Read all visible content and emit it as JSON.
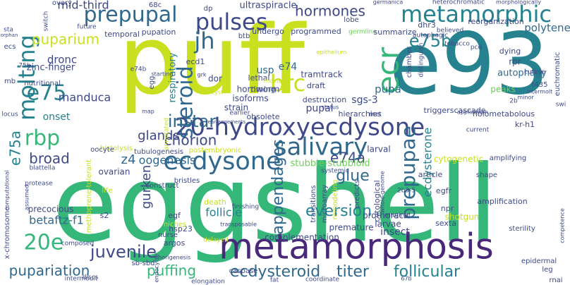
{
  "palette": {
    "purple": "#482878",
    "indigo": "#3e4989",
    "blue": "#31688e",
    "teal": "#26828e",
    "green": "#35b779",
    "lime": "#6ece58",
    "yellow": "#c8e020",
    "gold": "#d8e219"
  },
  "words": [
    {
      "text": "eggshell",
      "color": "#35b779"
    },
    {
      "text": "puff",
      "color": "#c8e020"
    },
    {
      "text": "e93",
      "color": "#26828e"
    },
    {
      "text": "metamorphosis",
      "color": "#482878"
    },
    {
      "text": "20-hydroxyecdysone",
      "color": "#3e4989"
    },
    {
      "text": "ecdysone",
      "color": "#31688e"
    },
    {
      "text": "metamorphic",
      "color": "#26828e"
    },
    {
      "text": "prepupal",
      "color": "#31688e"
    },
    {
      "text": "salivary",
      "color": "#31688e"
    },
    {
      "text": "steroid",
      "color": "#31688e"
    },
    {
      "text": "molting",
      "color": "#26828e"
    },
    {
      "text": "pulses",
      "color": "#3e4989"
    },
    {
      "text": "ecr",
      "color": "#35b779"
    },
    {
      "text": "brc",
      "color": "#c8e020"
    },
    {
      "text": "jh",
      "color": "#31688e"
    },
    {
      "text": "e75",
      "color": "#26828e"
    },
    {
      "text": "e75b",
      "color": "#26828e"
    },
    {
      "text": "prepupae",
      "color": "#31688e"
    },
    {
      "text": "juvenile",
      "color": "#3e4989"
    },
    {
      "text": "rbp",
      "color": "#35b779"
    },
    {
      "text": "20e",
      "color": "#35b779"
    },
    {
      "text": "instar",
      "color": "#31688e"
    },
    {
      "text": "chorion",
      "color": "#3e4989"
    },
    {
      "text": "appendages",
      "color": "#31688e"
    },
    {
      "text": "glue",
      "color": "#31688e"
    },
    {
      "text": "eversion",
      "color": "#26828e"
    },
    {
      "text": "follicular",
      "color": "#26828e"
    },
    {
      "text": "titer",
      "color": "#31688e"
    },
    {
      "text": "ecdysteroid",
      "color": "#31688e"
    },
    {
      "text": "pupariation",
      "color": "#31688e"
    },
    {
      "text": "puffing",
      "color": "#35b779"
    },
    {
      "text": "broad",
      "color": "#3e4989"
    },
    {
      "text": "e75a",
      "color": "#26828e"
    },
    {
      "text": "e74a",
      "color": "#3e4989"
    },
    {
      "text": "puparium",
      "color": "#c8e020"
    },
    {
      "text": "hormones",
      "color": "#3e4989"
    },
    {
      "text": "glands",
      "color": "#3e4989"
    },
    {
      "text": "ecdysterone",
      "color": "#26828e"
    },
    {
      "text": "gurken",
      "color": "#3e4989"
    },
    {
      "text": "z4",
      "color": "#31688e"
    },
    {
      "text": "oogenesis",
      "color": "#31688e"
    },
    {
      "text": "follicle",
      "color": "#26828e"
    },
    {
      "text": "betaftz-f1",
      "color": "#31688e"
    },
    {
      "text": "stubble-stubbloid",
      "color": "#6ece58"
    },
    {
      "text": "mid-third",
      "color": "#3e4989"
    },
    {
      "text": "manduca",
      "color": "#3e4989"
    },
    {
      "text": "dronc",
      "color": "#3e4989"
    },
    {
      "text": "e74",
      "color": "#31688e"
    },
    {
      "text": "usp",
      "color": "#31688e"
    },
    {
      "text": "pupa",
      "color": "#31688e"
    },
    {
      "text": "pupal",
      "color": "#3e4989"
    },
    {
      "text": "insect",
      "color": "#3e4989"
    },
    {
      "text": "ultraspiracle",
      "color": "#3e4989"
    },
    {
      "text": "polytene",
      "color": "#31688e"
    },
    {
      "text": "autophagy",
      "color": "#31688e"
    },
    {
      "text": "sgs-3",
      "color": "#3e4989"
    },
    {
      "text": "onset",
      "color": "#26828e"
    },
    {
      "text": "zinc-finger",
      "color": "#3e4989"
    },
    {
      "text": "respiratory",
      "color": "#26828e"
    },
    {
      "text": "larval",
      "color": "#3e4989"
    },
    {
      "text": "larvae",
      "color": "#3e4989"
    },
    {
      "text": "precocious",
      "color": "#3e4989"
    },
    {
      "text": "hsp23",
      "color": "#3e4989"
    },
    {
      "text": "complementation",
      "color": "#3e4989"
    },
    {
      "text": "prothoracic",
      "color": "#3e4989"
    },
    {
      "text": "premature",
      "color": "#3e4989"
    },
    {
      "text": "ovarian",
      "color": "#3e4989"
    },
    {
      "text": "egfr",
      "color": "#3e4989"
    },
    {
      "text": "npr",
      "color": "#3e4989"
    },
    {
      "text": "sexta",
      "color": "#3e4989"
    },
    {
      "text": "cytogenetic",
      "color": "#c8e020"
    },
    {
      "text": "shotgun",
      "color": "#c8e020"
    },
    {
      "text": "death",
      "color": "#c8e020"
    },
    {
      "text": "hierarchies",
      "color": "#3e4989"
    },
    {
      "text": "holometabolous",
      "color": "#3e4989"
    },
    {
      "text": "kr-h1",
      "color": "#3e4989"
    },
    {
      "text": "isoforms",
      "color": "#3e4989"
    },
    {
      "text": "strain",
      "color": "#3e4989"
    },
    {
      "text": "hornworm",
      "color": "#3e4989"
    },
    {
      "text": "dor",
      "color": "#3e4989"
    },
    {
      "text": "timing",
      "color": "#3e4989"
    },
    {
      "text": "lethal",
      "color": "#3e4989"
    },
    {
      "text": "tramtrack",
      "color": "#3e4989"
    },
    {
      "text": "draft",
      "color": "#3e4989"
    },
    {
      "text": "destruction",
      "color": "#3e4989"
    },
    {
      "text": "programmed",
      "color": "#3e4989"
    },
    {
      "text": "germline",
      "color": "#6ece58"
    },
    {
      "text": "undergo",
      "color": "#3e4989"
    },
    {
      "text": "btb",
      "color": "#3e4989"
    },
    {
      "text": "pupation",
      "color": "#3e4989"
    },
    {
      "text": "temporal",
      "color": "#3e4989"
    },
    {
      "text": "ecd1",
      "color": "#3e4989"
    },
    {
      "text": "reorganization",
      "color": "#3e4989"
    },
    {
      "text": "dhr3",
      "color": "#3e4989"
    },
    {
      "text": "summarize",
      "color": "#3e4989"
    },
    {
      "text": "dying",
      "color": "#3e4989"
    },
    {
      "text": "peaks",
      "color": "#6ece58"
    },
    {
      "text": "t435",
      "color": "#3e4989"
    },
    {
      "text": "rpr",
      "color": "#3e4989"
    },
    {
      "text": "egf",
      "color": "#3e4989"
    },
    {
      "text": "argos",
      "color": "#3e4989"
    },
    {
      "text": "s2",
      "color": "#3e4989"
    },
    {
      "text": "triggers",
      "color": "#3e4989"
    },
    {
      "text": "cascade",
      "color": "#3e4989"
    },
    {
      "text": "obsolete",
      "color": "#3e4989"
    },
    {
      "text": "earlier",
      "color": "#3e4989"
    },
    {
      "text": "article",
      "color": "#3e4989"
    },
    {
      "text": "amplifying",
      "color": "#3e4989"
    },
    {
      "text": "amplification",
      "color": "#3e4989"
    },
    {
      "text": "histolysis",
      "color": "#c8e020"
    },
    {
      "text": "oocyte",
      "color": "#3e4989"
    },
    {
      "text": "tubulogenesis",
      "color": "#3e4989"
    },
    {
      "text": "postembryonic",
      "color": "#c8e020"
    },
    {
      "text": "construct",
      "color": "#3e4989"
    },
    {
      "text": "bristles",
      "color": "#3e4989"
    },
    {
      "text": "finishing",
      "color": "#3e4989"
    },
    {
      "text": "nurse",
      "color": "#3e4989"
    },
    {
      "text": "niches",
      "color": "#c8e020"
    },
    {
      "text": "composed",
      "color": "#3e4989"
    },
    {
      "text": "caspase",
      "color": "#3e4989"
    },
    {
      "text": "sb-sbd",
      "color": "#3e4989"
    },
    {
      "text": "intermoult",
      "color": "#3e4989"
    },
    {
      "text": "leg",
      "color": "#3e4989"
    },
    {
      "text": "rnai",
      "color": "#3e4989"
    },
    {
      "text": "epidermal",
      "color": "#3e4989"
    },
    {
      "text": "swi",
      "color": "#3e4989"
    },
    {
      "text": "coordinate",
      "color": "#3e4989"
    },
    {
      "text": "elongation",
      "color": "#3e4989"
    },
    {
      "text": "fat",
      "color": "#3e4989"
    },
    {
      "text": "67b",
      "color": "#3e4989"
    },
    {
      "text": "ecs",
      "color": "#3e4989"
    },
    {
      "text": "mb",
      "color": "#3e4989"
    },
    {
      "text": "sta",
      "color": "#3e4989"
    },
    {
      "text": "locus",
      "color": "#3e4989"
    },
    {
      "text": "ovary",
      "color": "#3e4989"
    },
    {
      "text": "68c",
      "color": "#3e4989"
    },
    {
      "text": "dp",
      "color": "#3e4989"
    },
    {
      "text": "lobe",
      "color": "#3e4989"
    },
    {
      "text": "heterochromatic",
      "color": "#3e4989"
    },
    {
      "text": "morphologically",
      "color": "#3e4989"
    },
    {
      "text": "germanica",
      "color": "#3e4989"
    },
    {
      "text": "future",
      "color": "#3e4989"
    },
    {
      "text": "switch",
      "color": "#3e4989"
    },
    {
      "text": "nutritional",
      "color": "#3e4989"
    },
    {
      "text": "blattella",
      "color": "#3e4989"
    },
    {
      "text": "x-chromosome",
      "color": "#3e4989"
    },
    {
      "text": "computational",
      "color": "#3e4989"
    },
    {
      "text": "methoprene-tolerant",
      "color": "#c8e020"
    },
    {
      "text": "life",
      "color": "#c8e020"
    },
    {
      "text": "discs",
      "color": "#3e4989"
    },
    {
      "text": "endocycle",
      "color": "#3e4989"
    },
    {
      "text": "chorigenesis",
      "color": "#3e4989"
    },
    {
      "text": "transposable",
      "color": "#3e4989"
    },
    {
      "text": "delayed",
      "color": "#c8e020"
    },
    {
      "text": "remodeling",
      "color": "#c8e020"
    },
    {
      "text": "microarray",
      "color": "#3e4989"
    },
    {
      "text": "transitions",
      "color": "#3e4989"
    },
    {
      "text": "cytological",
      "color": "#3e4989"
    },
    {
      "text": "predicts",
      "color": "#3e4989"
    },
    {
      "text": "imaginal",
      "color": "#3e4989"
    },
    {
      "text": "2b3-5",
      "color": "#3e4989"
    },
    {
      "text": "systemic",
      "color": "#3e4989"
    },
    {
      "text": "whole-genome",
      "color": "#3e4989"
    },
    {
      "text": "shape",
      "color": "#3e4989"
    },
    {
      "text": "sterility",
      "color": "#3e4989"
    },
    {
      "text": "competence",
      "color": "#3e4989"
    },
    {
      "text": "application",
      "color": "#3e4989"
    },
    {
      "text": "current",
      "color": "#3e4989"
    },
    {
      "text": "rearrangements",
      "color": "#3e4989"
    },
    {
      "text": "met",
      "color": "#3e4989"
    },
    {
      "text": "2b",
      "color": "#3e4989"
    },
    {
      "text": "minor",
      "color": "#3e4989"
    },
    {
      "text": "cuticle",
      "color": "#3e4989"
    },
    {
      "text": "intermolt",
      "color": "#3e4989"
    },
    {
      "text": "euchromatic",
      "color": "#3e4989"
    },
    {
      "text": "chamber",
      "color": "#3e4989"
    },
    {
      "text": "distinguish",
      "color": "#3e4989"
    },
    {
      "text": "autophagic",
      "color": "#3e4989"
    },
    {
      "text": "tobacco",
      "color": "#3e4989"
    },
    {
      "text": "pcd",
      "color": "#3e4989"
    },
    {
      "text": "believed",
      "color": "#3e4989"
    },
    {
      "text": "epithelium",
      "color": "#c8e020"
    },
    {
      "text": "status",
      "color": "#3e4989"
    },
    {
      "text": "starting",
      "color": "#3e4989"
    },
    {
      "text": "grk",
      "color": "#3e4989"
    },
    {
      "text": "e74b",
      "color": "#3e4989"
    },
    {
      "text": "egg",
      "color": "#3e4989"
    },
    {
      "text": "annotated",
      "color": "#c8e020"
    },
    {
      "text": "protease",
      "color": "#3e4989"
    },
    {
      "text": "assumed",
      "color": "#3e4989"
    },
    {
      "text": "cyst",
      "color": "#c8e020"
    },
    {
      "text": "rhomboid",
      "color": "#c8e020"
    },
    {
      "text": "map",
      "color": "#3e4989"
    },
    {
      "text": "75b",
      "color": "#3e4989"
    },
    {
      "text": "orphan",
      "color": "#3e4989"
    }
  ]
}
